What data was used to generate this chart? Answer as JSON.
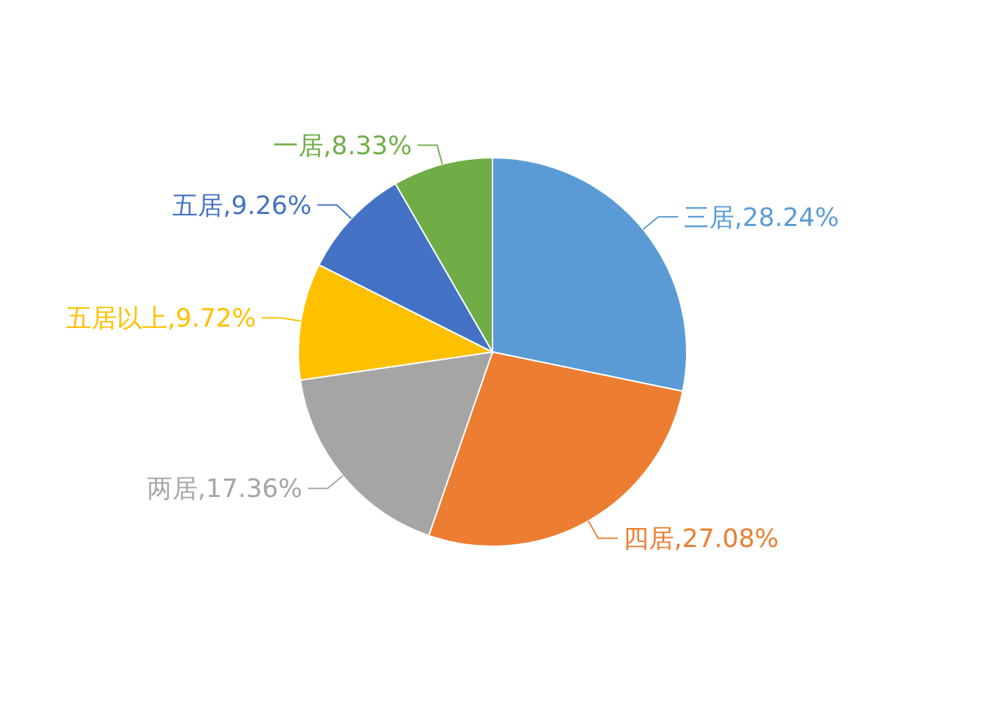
{
  "chart_data": {
    "type": "pie",
    "categories": [
      "三居",
      "四居",
      "两居",
      "五居以上",
      "五居",
      "一居"
    ],
    "values": [
      28.24,
      27.08,
      17.36,
      9.72,
      9.26,
      8.33
    ],
    "colors": [
      "#5b9bd5",
      "#ed7d31",
      "#a5a5a5",
      "#ffc000",
      "#4472c4",
      "#70ad47"
    ],
    "value_labels": [
      "28.24%",
      "27.08%",
      "17.36%",
      "9.72%",
      "9.26%",
      "8.33%"
    ],
    "legend": false
  }
}
